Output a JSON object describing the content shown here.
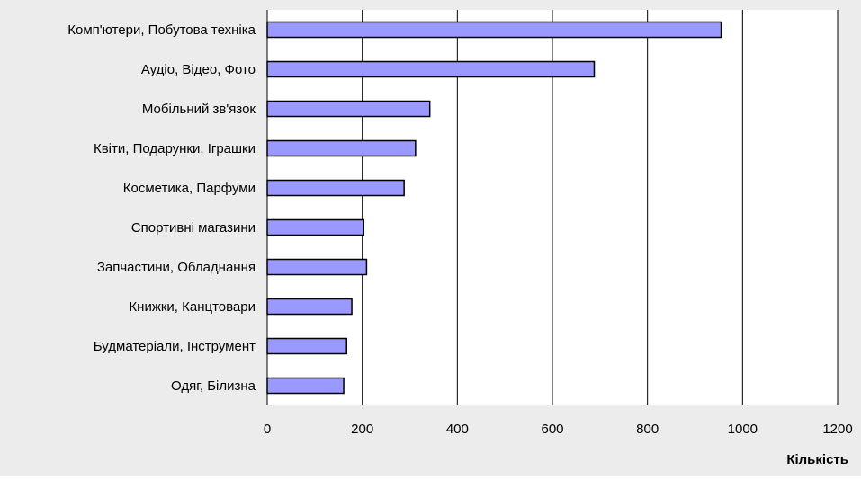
{
  "chart_data": {
    "type": "bar",
    "orientation": "horizontal",
    "categories": [
      "Комп'ютери, Побутова техніка",
      "Аудіо, Відео, Фото",
      "Мобільний зв'язок",
      "Квіти, Подарунки, Іграшки",
      "Косметика, Парфуми",
      "Спортивні магазини",
      "Запчастини, Обладнання",
      "Книжки, Канцтовари",
      "Будматеріали, Інструмент",
      "Одяг, Білизна"
    ],
    "values": [
      955,
      688,
      342,
      312,
      288,
      203,
      209,
      178,
      167,
      161
    ],
    "xlabel": "Кількість",
    "ylabel": "",
    "xlim": [
      0,
      1200
    ],
    "xticks": [
      0,
      200,
      400,
      600,
      800,
      1000,
      1200
    ],
    "grid": "vertical",
    "legend": "none",
    "colors": {
      "bar_fill": "#9999ff",
      "bar_stroke": "#000000",
      "background": "#ececec",
      "plot_background": "#ffffff",
      "grid": "#000000"
    }
  }
}
